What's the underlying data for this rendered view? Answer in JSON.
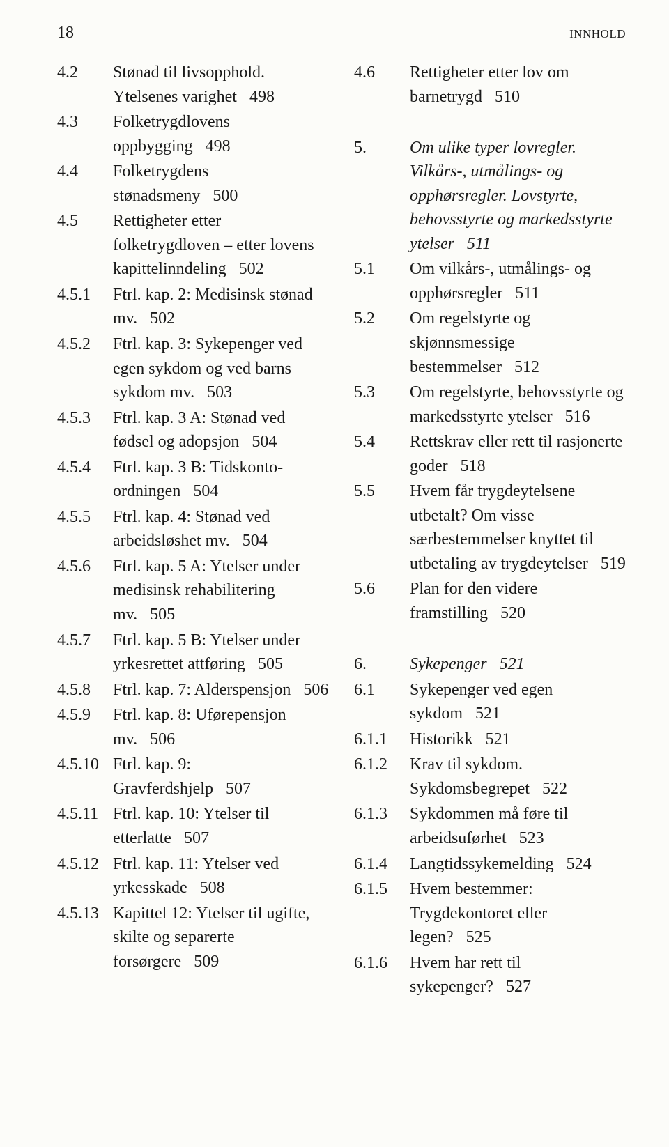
{
  "header": {
    "page_number": "18",
    "section_label": "INNHOLD"
  },
  "left": [
    {
      "num": "4.2",
      "text": "Stønad til livsopphold. Ytelsenes varighet",
      "page": "498"
    },
    {
      "num": "4.3",
      "text": "Folketrygdlovens oppbygging",
      "page": "498"
    },
    {
      "num": "4.4",
      "text": "Folketrygdens stønadsmeny",
      "page": "500"
    },
    {
      "num": "4.5",
      "text": "Rettigheter etter folketrygdloven – etter lovens kapittelinndeling",
      "page": "502"
    },
    {
      "num": "4.5.1",
      "text": "Ftrl. kap. 2: Medisinsk stønad mv.",
      "page": "502"
    },
    {
      "num": "4.5.2",
      "text": "Ftrl. kap. 3: Sykepenger ved egen sykdom og ved barns sykdom mv.",
      "page": "503"
    },
    {
      "num": "4.5.3",
      "text": "Ftrl. kap. 3 A: Stønad ved fødsel og adopsjon",
      "page": "504"
    },
    {
      "num": "4.5.4",
      "text": "Ftrl. kap. 3 B: Tidskonto-ordningen",
      "page": "504"
    },
    {
      "num": "4.5.5",
      "text": "Ftrl. kap. 4: Stønad ved arbeidsløshet mv.",
      "page": "504"
    },
    {
      "num": "4.5.6",
      "text": "Ftrl. kap. 5 A: Ytelser under medisinsk rehabilitering mv.",
      "page": "505"
    },
    {
      "num": "4.5.7",
      "text": "Ftrl. kap. 5 B: Ytelser under yrkesrettet attføring",
      "page": "505"
    },
    {
      "num": "4.5.8",
      "text": "Ftrl. kap. 7: Alderspensjon",
      "page": "506"
    },
    {
      "num": "4.5.9",
      "text": "Ftrl. kap. 8: Uførepensjon mv.",
      "page": "506"
    },
    {
      "num": "4.5.10",
      "text": "Ftrl. kap. 9: Gravferdshjelp",
      "page": "507"
    },
    {
      "num": "4.5.11",
      "text": "Ftrl. kap. 10: Ytelser til etterlatte",
      "page": "507"
    },
    {
      "num": "4.5.12",
      "text": "Ftrl. kap. 11: Ytelser ved yrkesskade",
      "page": "508"
    },
    {
      "num": "4.5.13",
      "text": "Kapittel 12: Ytelser til ugifte, skilte og separerte forsørgere",
      "page": "509"
    }
  ],
  "right": [
    {
      "num": "4.6",
      "text": "Rettigheter etter lov om barnetrygd",
      "page": "510"
    },
    {
      "num": "",
      "text": "",
      "page": ""
    },
    {
      "num": "5.",
      "italic": true,
      "text": "Om ulike typer lovregler. Vilkårs-, utmålings- og opphørsregler. Lovstyrte, behovsstyrte og markedsstyrte ytelser",
      "page": "511"
    },
    {
      "num": "5.1",
      "text": "Om vilkårs-, utmålings- og opphørsregler",
      "page": "511"
    },
    {
      "num": "5.2",
      "text": "Om regelstyrte og skjønnsmessige bestemmelser",
      "page": "512"
    },
    {
      "num": "5.3",
      "text": "Om regelstyrte, behovsstyrte og markedsstyrte ytelser",
      "page": "516"
    },
    {
      "num": "5.4",
      "text": "Rettskrav eller rett til rasjonerte goder",
      "page": "518"
    },
    {
      "num": "5.5",
      "text": "Hvem får trygdeytelsene utbetalt? Om visse særbestemmelser knyttet til utbetaling av trygdeytelser",
      "page": "519"
    },
    {
      "num": "5.6",
      "text": "Plan for den videre framstilling",
      "page": "520"
    },
    {
      "num": "",
      "text": "",
      "page": ""
    },
    {
      "num": "6.",
      "italic": true,
      "text": "Sykepenger",
      "page": "521"
    },
    {
      "num": "6.1",
      "text": "Sykepenger ved egen sykdom",
      "page": "521"
    },
    {
      "num": "6.1.1",
      "text": "Historikk",
      "page": "521"
    },
    {
      "num": "6.1.2",
      "text": "Krav til sykdom. Sykdomsbegrepet",
      "page": "522"
    },
    {
      "num": "6.1.3",
      "text": "Sykdommen må føre til arbeidsuførhet",
      "page": "523"
    },
    {
      "num": "6.1.4",
      "text": "Langtidssykemelding",
      "page": "524"
    },
    {
      "num": "6.1.5",
      "text": "Hvem bestemmer: Trygdekontoret eller legen?",
      "page": "525"
    },
    {
      "num": "6.1.6",
      "text": "Hvem har rett til sykepenger?",
      "page": "527"
    }
  ]
}
